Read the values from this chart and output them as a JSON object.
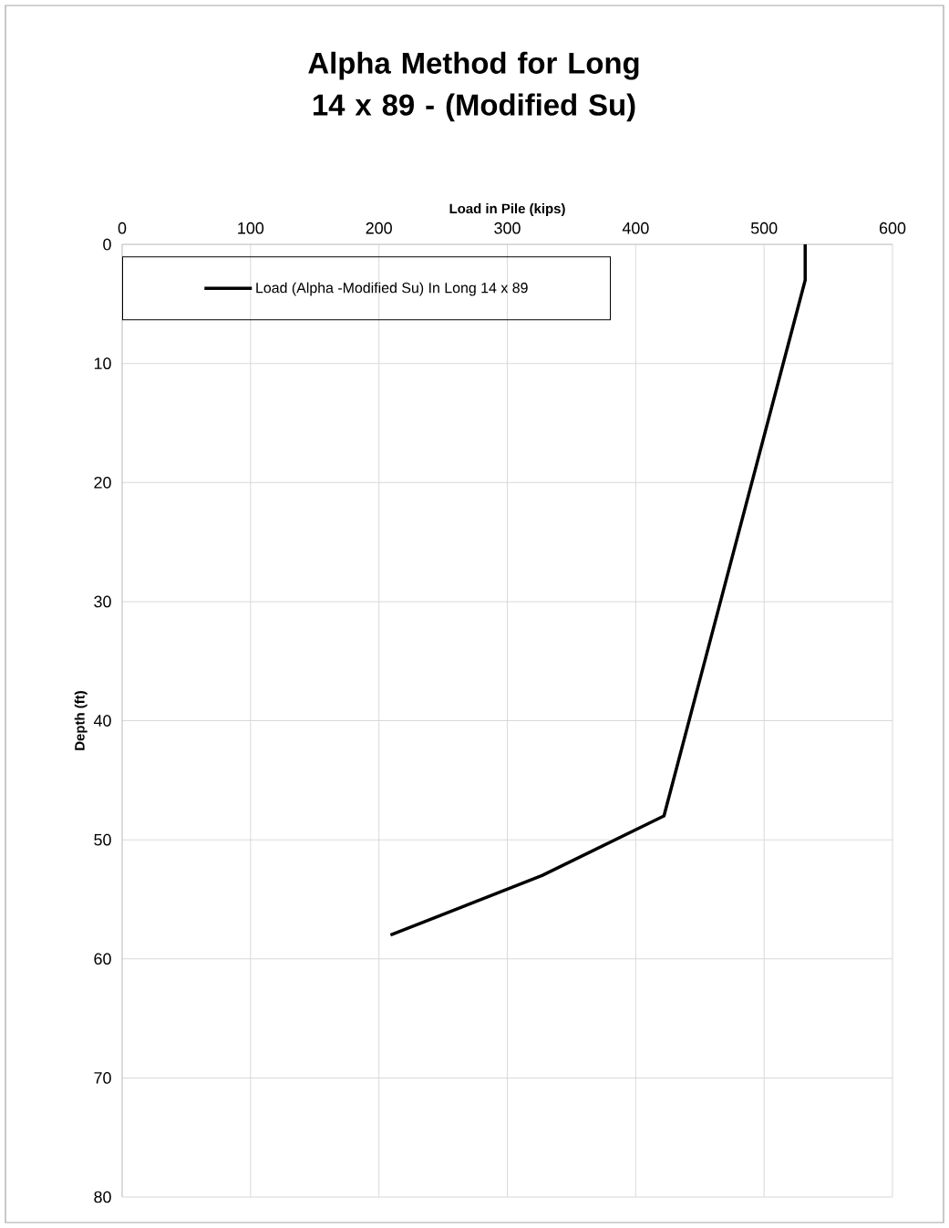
{
  "chart_data": {
    "type": "line",
    "title": "Alpha Method for Long 14 x 89 - (Modified Su)",
    "xlabel": "Load in Pile (kips)",
    "ylabel": "Depth (ft)",
    "xlim": [
      0,
      600
    ],
    "xticks": [
      0,
      100,
      200,
      300,
      400,
      500,
      600
    ],
    "ylim": [
      80,
      0
    ],
    "yticks": [
      0,
      10,
      20,
      30,
      40,
      50,
      60,
      70,
      80
    ],
    "grid": true,
    "legend": "top left",
    "series": [
      {
        "name": "Load (Alpha -Modified Su) In Long 14 x 89",
        "color": "#000000",
        "x": [
          532,
          532,
          422,
          327,
          209
        ],
        "values": [
          0,
          3,
          48,
          53,
          58
        ]
      }
    ]
  }
}
